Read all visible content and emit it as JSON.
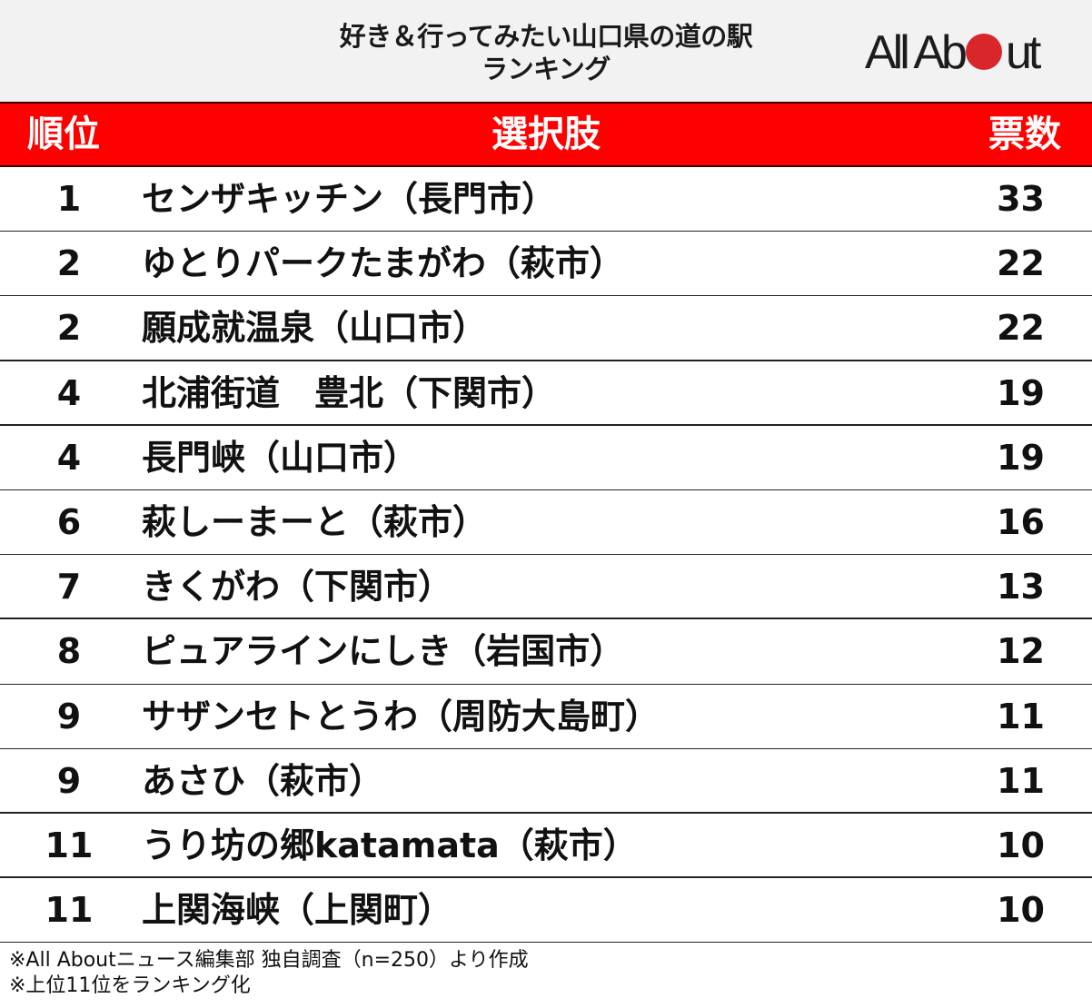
{
  "title": {
    "line1": "好き＆行ってみたい山口県の道の駅",
    "line2": "ランキング"
  },
  "logo": {
    "text_before": "All Ab",
    "text_after": "ut",
    "dot_color": "#d9262b"
  },
  "header": {
    "rank": "順位",
    "choice": "選択肢",
    "votes": "票数",
    "background": "#ff0000"
  },
  "rows": [
    {
      "rank": "1",
      "name": "センザキッチン（長門市）",
      "votes": "33"
    },
    {
      "rank": "2",
      "name": "ゆとりパークたまがわ（萩市）",
      "votes": "22"
    },
    {
      "rank": "2",
      "name": "願成就温泉（山口市）",
      "votes": "22"
    },
    {
      "rank": "4",
      "name": "北浦街道　豊北（下関市）",
      "votes": "19"
    },
    {
      "rank": "4",
      "name": "長門峡（山口市）",
      "votes": "19"
    },
    {
      "rank": "6",
      "name": "萩しーまーと（萩市）",
      "votes": "16"
    },
    {
      "rank": "7",
      "name": "きくがわ（下関市）",
      "votes": "13"
    },
    {
      "rank": "8",
      "name": "ピュアラインにしき（岩国市）",
      "votes": "12"
    },
    {
      "rank": "9",
      "name": "サザンセトとうわ（周防大島町）",
      "votes": "11"
    },
    {
      "rank": "9",
      "name": "あさひ（萩市）",
      "votes": "11"
    },
    {
      "rank": "11",
      "name": "うり坊の郷katamata（萩市）",
      "votes": "10"
    },
    {
      "rank": "11",
      "name": "上関海峡（上関町）",
      "votes": "10"
    }
  ],
  "notes": {
    "line1": "※All Aboutニュース編集部 独自調査（n=250）より作成",
    "line2": "※上位11位をランキング化"
  },
  "chart_data": {
    "type": "table",
    "title": "好き＆行ってみたい山口県の道の駅ランキング",
    "columns": [
      "順位",
      "選択肢",
      "票数"
    ],
    "categories": [
      "センザキッチン（長門市）",
      "ゆとりパークたまがわ（萩市）",
      "願成就温泉（山口市）",
      "北浦街道　豊北（下関市）",
      "長門峡（山口市）",
      "萩しーまーと（萩市）",
      "きくがわ（下関市）",
      "ピュアラインにしき（岩国市）",
      "サザンセトとうわ（周防大島町）",
      "あさひ（萩市）",
      "うり坊の郷katamata（萩市）",
      "上関海峡（上関町）"
    ],
    "ranks": [
      1,
      2,
      2,
      4,
      4,
      6,
      7,
      8,
      9,
      9,
      11,
      11
    ],
    "values": [
      33,
      22,
      22,
      19,
      19,
      16,
      13,
      12,
      11,
      11,
      10,
      10
    ],
    "source": "※All Aboutニュース編集部 独自調査（n=250）より作成",
    "note": "※上位11位をランキング化"
  }
}
